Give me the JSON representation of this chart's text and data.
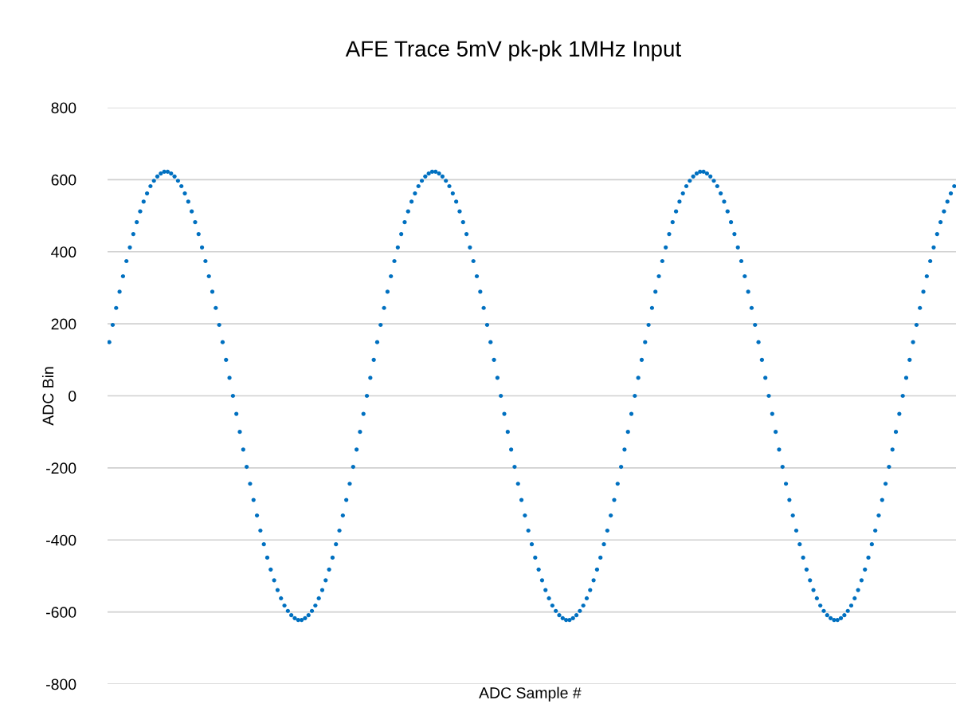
{
  "chart_data": {
    "type": "scatter",
    "title": "AFE Trace 5mV pk-pk 1MHz Input",
    "xlabel": "ADC Sample #",
    "ylabel": "ADC Bin",
    "categories": [
      null,
      null,
      null,
      null,
      null,
      null,
      null,
      null,
      null,
      null,
      null,
      null,
      null,
      null,
      null,
      null,
      null,
      null,
      null,
      null,
      null,
      null,
      null,
      null,
      null,
      null,
      null,
      null,
      null,
      null,
      null,
      null,
      null,
      null,
      null,
      null,
      null,
      null,
      null,
      null,
      null,
      null,
      null,
      null,
      null,
      null,
      null,
      null,
      null,
      null,
      null,
      null,
      null,
      null,
      null,
      null,
      null,
      null,
      null,
      null,
      null,
      null,
      null,
      null,
      null,
      null,
      null,
      null,
      null,
      null,
      null,
      null,
      null,
      null,
      null,
      null,
      null,
      null,
      null,
      null,
      null,
      null,
      null,
      null,
      null,
      null,
      null,
      null,
      null,
      null,
      null,
      null,
      null,
      null,
      null,
      null,
      null,
      null,
      null,
      null,
      null,
      null,
      null,
      null,
      null,
      null,
      null,
      null,
      null,
      null,
      null,
      null,
      null,
      null,
      null,
      null,
      null,
      null,
      null,
      null,
      null,
      null,
      null,
      null,
      null,
      null,
      null,
      null,
      null,
      null,
      null,
      null,
      null,
      null,
      null,
      null,
      null,
      null,
      null,
      null,
      null,
      null,
      null,
      null,
      null,
      null,
      null,
      null,
      null,
      null,
      null,
      null,
      null,
      null,
      null,
      null,
      null,
      null,
      null,
      null,
      null,
      null,
      null,
      null,
      null,
      null,
      null,
      null,
      null,
      null,
      null,
      null,
      null,
      null,
      null,
      null,
      null,
      null,
      null,
      null,
      null,
      null,
      null,
      null,
      null,
      null,
      null,
      null,
      null,
      null,
      null,
      null,
      null,
      null,
      null,
      null,
      null,
      null,
      null,
      null,
      null,
      null,
      null,
      null,
      null,
      null,
      null,
      null,
      null,
      null,
      null,
      null,
      null,
      null,
      null,
      null,
      null,
      null,
      null,
      null,
      null,
      null,
      null,
      null,
      null,
      null,
      null,
      null,
      null,
      null,
      null,
      null,
      null,
      null,
      null,
      null,
      null,
      null,
      null,
      null,
      null,
      null,
      null,
      null,
      null,
      null,
      null
    ],
    "series": [
      {
        "color": "#0070c0",
        "values": [
          149,
          197,
          244,
          289,
          332,
          374,
          412,
          449,
          482,
          512,
          539,
          562,
          582,
          597,
          609,
          617,
          622,
          622,
          617,
          609,
          597,
          582,
          562,
          539,
          512,
          482,
          449,
          412,
          374,
          332,
          289,
          244,
          197,
          149,
          100,
          50,
          0,
          -50,
          -100,
          -149,
          -197,
          -244,
          -289,
          -332,
          -374,
          -412,
          -449,
          -482,
          -512,
          -539,
          -562,
          -582,
          -597,
          -609,
          -617,
          -622,
          -622,
          -617,
          -609,
          -597,
          -582,
          -562,
          -539,
          -512,
          -482,
          -449,
          -412,
          -374,
          -332,
          -289,
          -244,
          -197,
          -149,
          -100,
          -50,
          0,
          50,
          100,
          149,
          197,
          244,
          289,
          332,
          374,
          412,
          449,
          482,
          512,
          539,
          562,
          582,
          597,
          609,
          617,
          622,
          622,
          617,
          609,
          597,
          582,
          562,
          539,
          512,
          482,
          449,
          412,
          374,
          332,
          289,
          244,
          197,
          149,
          100,
          50,
          0,
          -50,
          -100,
          -149,
          -197,
          -244,
          -289,
          -332,
          -374,
          -412,
          -449,
          -482,
          -512,
          -539,
          -562,
          -582,
          -597,
          -609,
          -617,
          -622,
          -622,
          -617,
          -609,
          -597,
          -582,
          -562,
          -539,
          -512,
          -482,
          -449,
          -412,
          -374,
          -332,
          -289,
          -244,
          -197,
          -149,
          -100,
          -50,
          0,
          50,
          100,
          149,
          197,
          244,
          289,
          332,
          374,
          412,
          449,
          482,
          512,
          539,
          562,
          582,
          597,
          609,
          617,
          622,
          622,
          617,
          609,
          597,
          582,
          562,
          539,
          512,
          482,
          449,
          412,
          374,
          332,
          289,
          244,
          197,
          149,
          100,
          50,
          0,
          -50,
          -100,
          -149,
          -197,
          -244,
          -289,
          -332,
          -374,
          -412,
          -449,
          -482,
          -512,
          -539,
          -562,
          -582,
          -597,
          -609,
          -617,
          -622,
          -622,
          -617,
          -609,
          -597,
          -582,
          -562,
          -539,
          -512,
          -482,
          -449,
          -412,
          -374,
          -332,
          -289,
          -244,
          -197,
          -149,
          -100,
          -50,
          0,
          50,
          100,
          149,
          197,
          244,
          289,
          332,
          374,
          412,
          449,
          482,
          512,
          539,
          562,
          582
        ]
      }
    ],
    "ylim": [
      -800,
      800
    ],
    "yticks": [
      -800,
      -600,
      -400,
      -200,
      0,
      200,
      400,
      600,
      800
    ],
    "grid": "y",
    "tick_labels": "y",
    "marker": "circle"
  }
}
